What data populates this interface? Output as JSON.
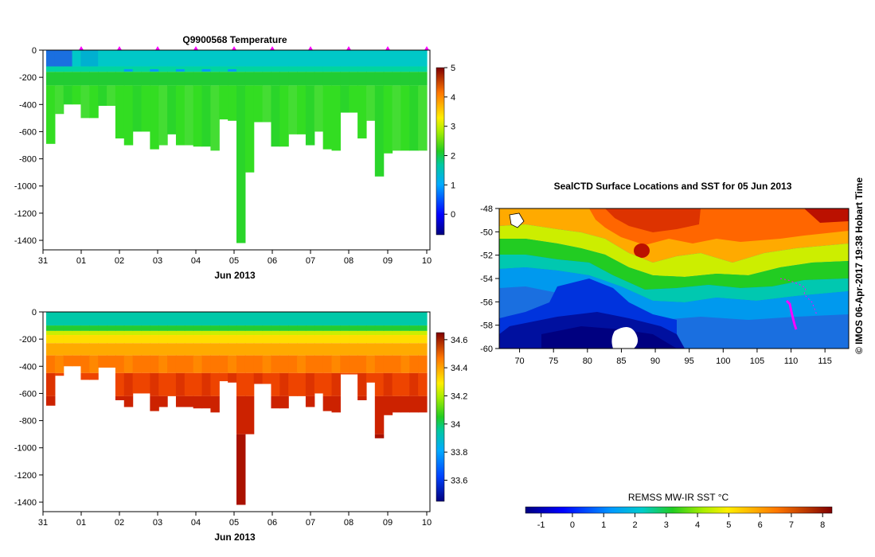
{
  "figure": {
    "credit": "© IMOS 06-Apr-2017 19:38 Hobart Time"
  },
  "chart_data": [
    {
      "type": "heatmap",
      "title": "Q9900568  Temperature",
      "xlabel": "Jun 2013",
      "ylabel": "",
      "x_tick_labels": [
        "31",
        "01",
        "02",
        "03",
        "04",
        "05",
        "06",
        "07",
        "08",
        "09",
        "10"
      ],
      "y_tick_labels": [
        "0",
        "-200",
        "-400",
        "-600",
        "-800",
        "-1000",
        "-1200",
        "-1400"
      ],
      "ylim": [
        -1470,
        0
      ],
      "colorbar_ticks": [
        "0",
        "1",
        "2",
        "3",
        "4",
        "5"
      ],
      "colorbar_range": [
        -0.7,
        5
      ],
      "profile_count": 44,
      "profile_depths_m": [
        -690,
        -470,
        -400,
        -400,
        -500,
        -500,
        -410,
        -410,
        -650,
        -700,
        -600,
        -600,
        -730,
        -700,
        -620,
        -700,
        -700,
        -710,
        -710,
        -740,
        -510,
        -520,
        -1420,
        -900,
        -530,
        -530,
        -710,
        -710,
        -620,
        -620,
        -700,
        -600,
        -730,
        -740,
        -460,
        -460,
        -650,
        -520,
        -930,
        -760,
        -740,
        -740,
        -740,
        -740
      ],
      "upper_layer_value_C": 1.0,
      "mid_layer_value_C": 2.3,
      "deep_value_C": 2.3
    },
    {
      "type": "heatmap",
      "title": "",
      "xlabel": "Jun 2013",
      "ylabel": "",
      "x_tick_labels": [
        "31",
        "01",
        "02",
        "03",
        "04",
        "05",
        "06",
        "07",
        "08",
        "09",
        "10"
      ],
      "y_tick_labels": [
        "0",
        "-200",
        "-400",
        "-600",
        "-800",
        "-1000",
        "-1200",
        "-1400"
      ],
      "ylim": [
        -1470,
        0
      ],
      "colorbar_ticks": [
        "33.6",
        "33.8",
        "34",
        "34.2",
        "34.4",
        "34.6"
      ],
      "colorbar_range": [
        33.45,
        34.65
      ],
      "surface_value": 33.95,
      "deep_value": 34.7
    },
    {
      "type": "heatmap",
      "title": "SealCTD Surface Locations and SST for 05 Jun 2013",
      "x_tick_labels": [
        "70",
        "75",
        "80",
        "85",
        "90",
        "95",
        "100",
        "105",
        "110",
        "115"
      ],
      "y_tick_labels": [
        "-48",
        "-50",
        "-52",
        "-54",
        "-56",
        "-58",
        "-60"
      ],
      "xlim": [
        67,
        118.5
      ],
      "ylim": [
        -60,
        -48
      ],
      "colorbar_title": "REMSS MW-IR SST °C",
      "colorbar_ticks": [
        "-1",
        "0",
        "1",
        "2",
        "3",
        "4",
        "5",
        "6",
        "7",
        "8"
      ],
      "colorbar_range": [
        -1.5,
        8.3
      ],
      "track_color": "#ff00ff"
    }
  ]
}
